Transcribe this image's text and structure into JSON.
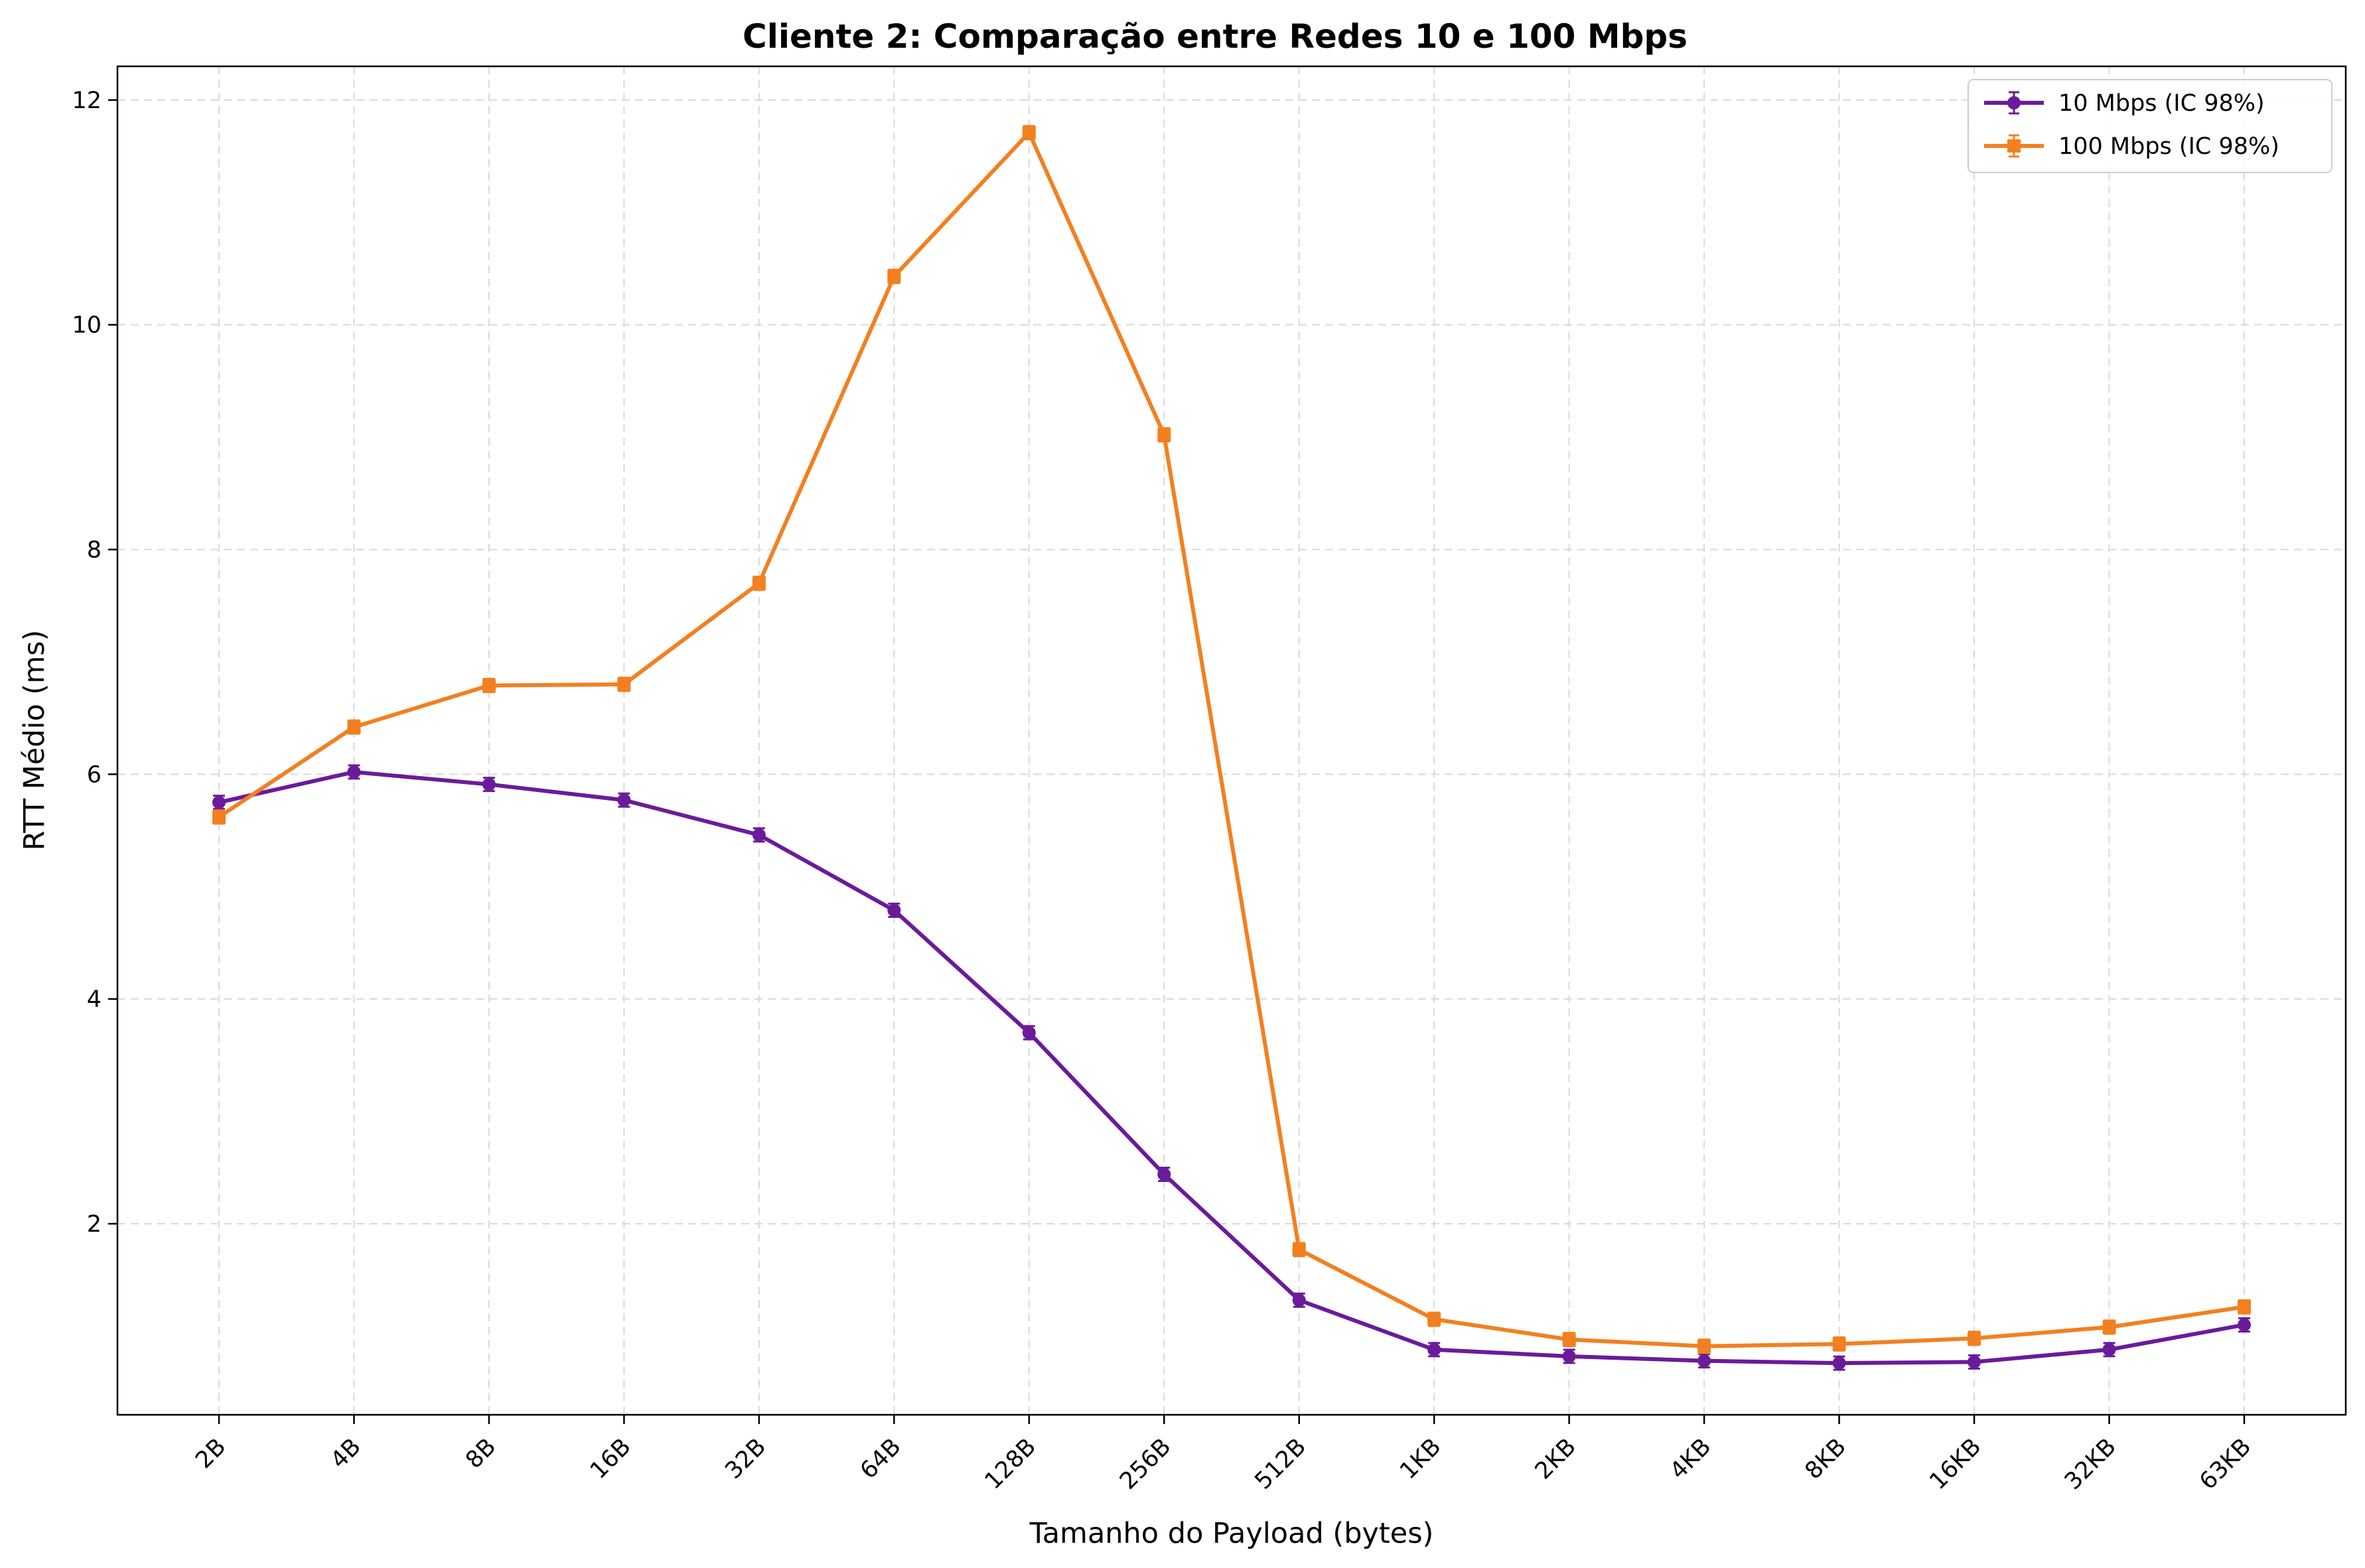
{
  "chart_data": {
    "type": "line",
    "title": "Cliente 2: Comparação entre Redes 10 e 100 Mbps",
    "xlabel": "Tamanho do Payload (bytes)",
    "ylabel": "RTT Médio (ms)",
    "categories": [
      "2B",
      "4B",
      "8B",
      "16B",
      "32B",
      "64B",
      "128B",
      "256B",
      "512B",
      "1KB",
      "2KB",
      "4KB",
      "8KB",
      "16KB",
      "32KB",
      "63KB"
    ],
    "yticks": [
      2,
      4,
      6,
      8,
      10,
      12
    ],
    "ytick_labels": [
      "2",
      "4",
      "6",
      "8",
      "10",
      "12"
    ],
    "ylim": [
      0.3,
      12.3
    ],
    "grid": true,
    "legend_position": "top-right",
    "series": [
      {
        "name": "10 Mbps (IC 98%)",
        "color": "#6a1b9a",
        "marker": "circle",
        "values": [
          5.75,
          6.02,
          5.91,
          5.77,
          5.46,
          4.79,
          3.7,
          2.44,
          1.32,
          0.88,
          0.82,
          0.78,
          0.76,
          0.77,
          0.88,
          1.1
        ]
      },
      {
        "name": "100 Mbps (IC 98%)",
        "color": "#f28020",
        "marker": "square",
        "values": [
          5.62,
          6.42,
          6.79,
          6.8,
          7.7,
          10.43,
          11.71,
          9.02,
          1.77,
          1.15,
          0.97,
          0.91,
          0.93,
          0.98,
          1.08,
          1.26
        ]
      }
    ]
  }
}
